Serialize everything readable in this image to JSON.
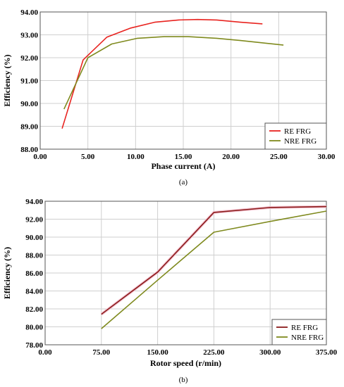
{
  "chart_data": [
    {
      "type": "line",
      "caption": "(a)",
      "xlabel": "Phase current (A)",
      "ylabel": "Efficiency (%)",
      "xlim": [
        0,
        30
      ],
      "ylim": [
        88,
        94
      ],
      "xticks": [
        "0.00",
        "5.00",
        "10.00",
        "15.00",
        "20.00",
        "25.00",
        "30.00"
      ],
      "yticks": [
        "88.00",
        "89.00",
        "90.00",
        "91.00",
        "92.00",
        "93.00",
        "94.00"
      ],
      "grid": true,
      "legend": "bottom-right",
      "series": [
        {
          "name": "RE FRG",
          "color": "#e8231f",
          "x": [
            2.3,
            4.5,
            7.0,
            9.5,
            12.0,
            14.5,
            16.5,
            18.5,
            21.0,
            23.3
          ],
          "y": [
            88.9,
            91.9,
            92.9,
            93.3,
            93.55,
            93.65,
            93.67,
            93.65,
            93.55,
            93.48
          ]
        },
        {
          "name": "NRE FRG",
          "color": "#7f8a1e",
          "x": [
            2.5,
            5.0,
            7.5,
            10.2,
            13.0,
            15.5,
            18.5,
            21.0,
            25.5
          ],
          "y": [
            89.75,
            92.0,
            92.6,
            92.85,
            92.92,
            92.92,
            92.85,
            92.75,
            92.55
          ]
        }
      ]
    },
    {
      "type": "line",
      "caption": "(b)",
      "xlabel": "Rotor speed (r/min)",
      "ylabel": "Efficiency (%)",
      "xlim": [
        0,
        375
      ],
      "ylim": [
        78,
        94
      ],
      "xticks": [
        "0.00",
        "75.00",
        "150.00",
        "225.00",
        "300.00",
        "375.00"
      ],
      "yticks": [
        "78.00",
        "80.00",
        "82.00",
        "84.00",
        "86.00",
        "88.00",
        "90.00",
        "92.00",
        "94.00"
      ],
      "grid": true,
      "legend": "bottom-right",
      "series": [
        {
          "name": "RE FRG",
          "color": "#8b1a1a",
          "x": [
            75,
            150,
            225,
            300,
            375
          ],
          "y": [
            81.4,
            86.1,
            92.75,
            93.3,
            93.4
          ]
        },
        {
          "name": "NRE FRG",
          "color": "#7f8a1e",
          "x": [
            75,
            150,
            225,
            300,
            375
          ],
          "y": [
            79.8,
            85.2,
            90.55,
            91.75,
            92.9
          ]
        }
      ]
    }
  ]
}
